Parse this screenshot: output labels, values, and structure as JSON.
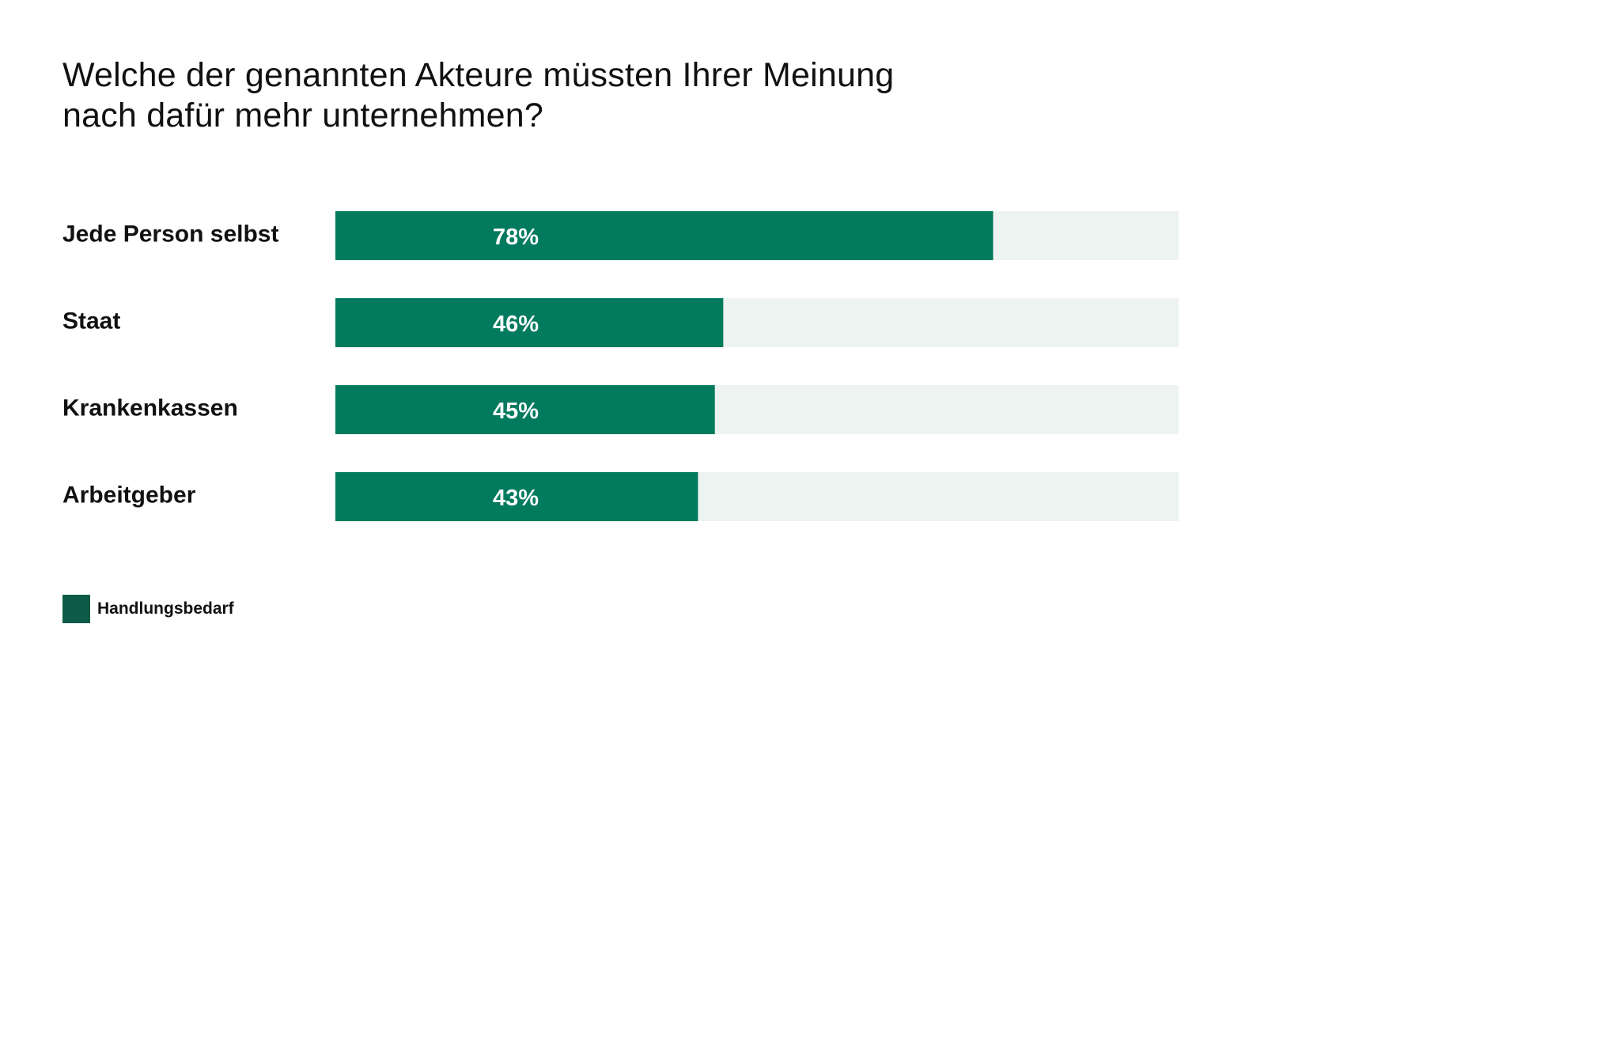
{
  "chart_data": {
    "type": "bar",
    "orientation": "horizontal",
    "title": "Welche der genannten Akteure müssten Ihrer Meinung nach dafür mehr unternehmen?",
    "categories": [
      "Jede Person selbst",
      "Staat",
      "Krankenkassen",
      "Arbeitgeber"
    ],
    "series": [
      {
        "name": "Handlungsbedarf",
        "values": [
          78,
          46,
          45,
          43
        ],
        "labels": [
          "78%",
          "46%",
          "45%",
          "43%"
        ]
      }
    ],
    "xlim": [
      0,
      100
    ],
    "unit": "%",
    "grid": false,
    "legend_position": "bottom-left"
  },
  "legend": {
    "label": "Handlungsbedarf"
  },
  "colors": {
    "bar": "#027a5e",
    "track": "#edf3f0",
    "legend_swatch": "#0d5a46"
  }
}
